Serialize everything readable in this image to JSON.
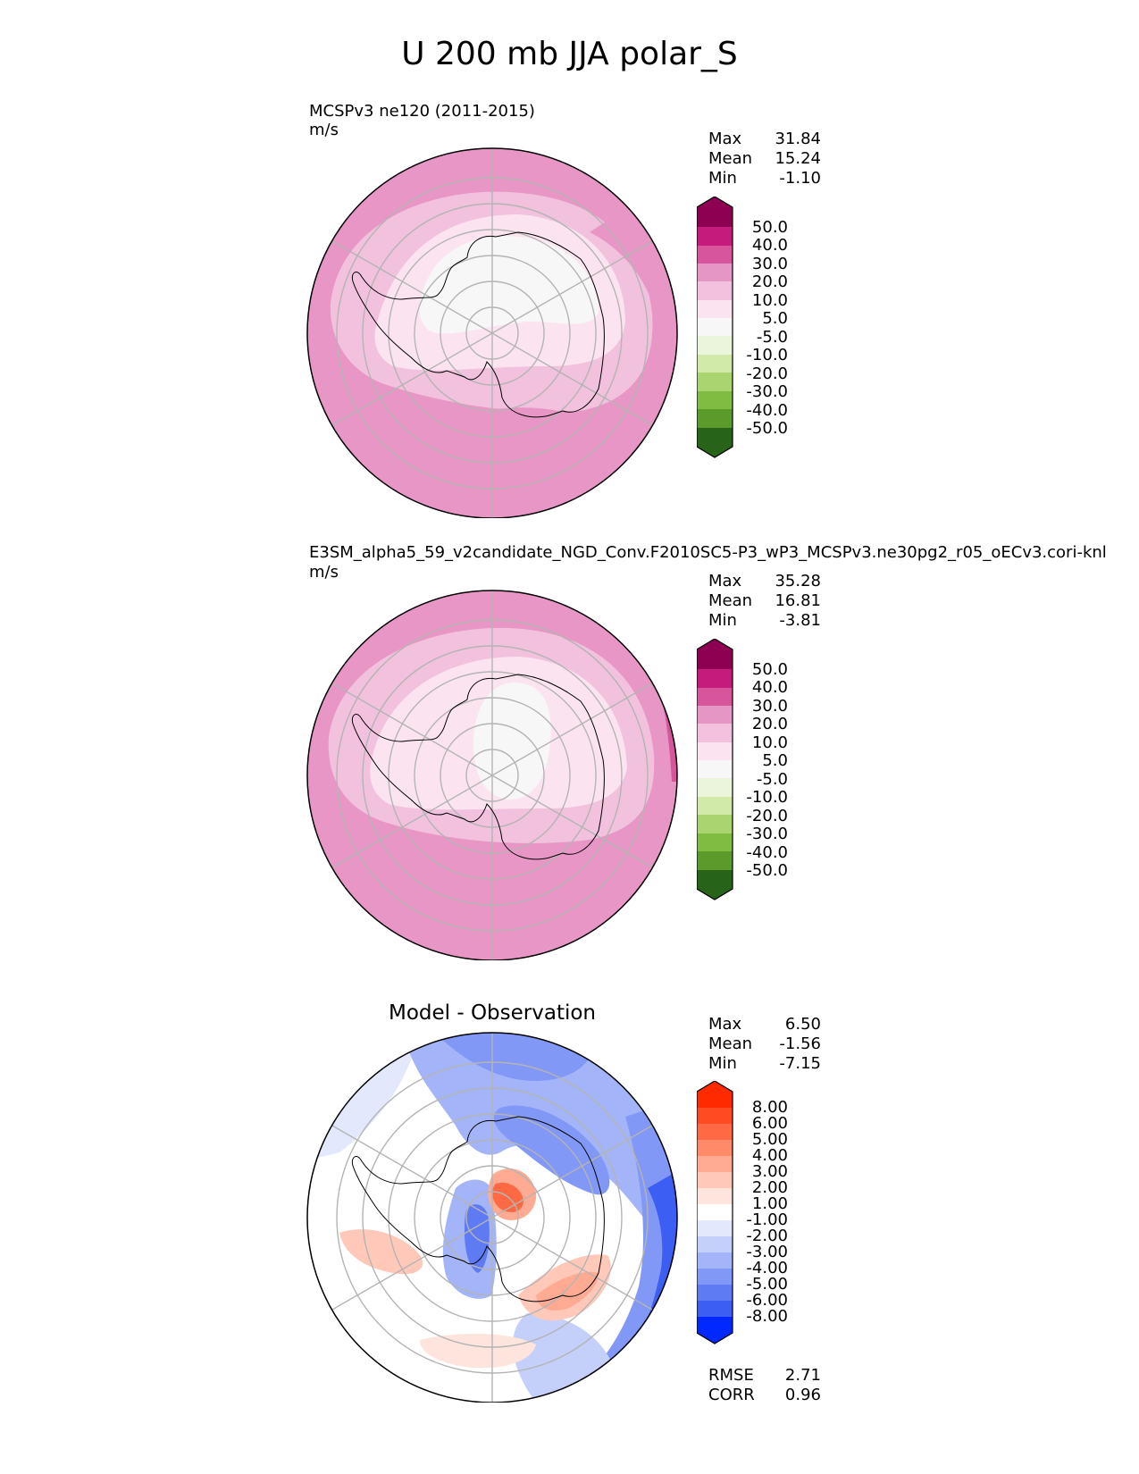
{
  "figure": {
    "title": "U 200 mb JJA polar_S"
  },
  "panels": [
    {
      "label": "MCSPv3 ne120 (2011-2015)",
      "units": "m/s",
      "stats": {
        "max_label": "Max",
        "max": "31.84",
        "mean_label": "Mean",
        "mean": "15.24",
        "min_label": "Min",
        "min": "-1.10"
      },
      "colorbar_labels": [
        "50.0",
        "40.0",
        "30.0",
        "20.0",
        "10.0",
        "5.0",
        "-5.0",
        "-10.0",
        "-20.0",
        "-30.0",
        "-40.0",
        "-50.0"
      ]
    },
    {
      "label": "E3SM_alpha5_59_v2candidate_NGD_Conv.F2010SC5-P3_wP3_MCSPv3.ne30pg2_r05_oECv3.cori-knl",
      "units": "m/s",
      "stats": {
        "max_label": "Max",
        "max": "35.28",
        "mean_label": "Mean",
        "mean": "16.81",
        "min_label": "Min",
        "min": "-3.81"
      },
      "colorbar_labels": [
        "50.0",
        "40.0",
        "30.0",
        "20.0",
        "10.0",
        "5.0",
        "-5.0",
        "-10.0",
        "-20.0",
        "-30.0",
        "-40.0",
        "-50.0"
      ]
    },
    {
      "title": "Model - Observation",
      "stats": {
        "max_label": "Max",
        "max": "6.50",
        "mean_label": "Mean",
        "mean": "-1.56",
        "min_label": "Min",
        "min": "-7.15"
      },
      "colorbar_labels": [
        "8.00",
        "6.00",
        "5.00",
        "4.00",
        "3.00",
        "2.00",
        "1.00",
        "-1.00",
        "-2.00",
        "-3.00",
        "-4.00",
        "-5.00",
        "-6.00",
        "-8.00"
      ],
      "metrics": {
        "rmse_label": "RMSE",
        "rmse": "2.71",
        "corr_label": "CORR",
        "corr": "0.96"
      }
    }
  ],
  "colors": {
    "seq": [
      "#8e0152",
      "#c51b7d",
      "#de77ae",
      "#f1b6da",
      "#fde0ef",
      "#f7f7f7",
      "#e6f5d0",
      "#b8e186",
      "#7fbc41",
      "#4d9221",
      "#276419"
    ],
    "seq_colorbar": [
      "#8e0152",
      "#c51b7d",
      "#d6559b",
      "#e696c4",
      "#f1c1dd",
      "#fbe4ef",
      "#f7f7f7",
      "#ebf5dc",
      "#d1eaaa",
      "#a9d46f",
      "#7fbc41",
      "#5b9b2b",
      "#3f7d22",
      "#276419"
    ],
    "diff_colorbar": [
      "#ff2a00",
      "#ff4a22",
      "#ff6a44",
      "#ff8a6a",
      "#ffaa92",
      "#ffc8b8",
      "#fde4dc",
      "#ffffff",
      "#e3e8fd",
      "#c4cffa",
      "#a3b5f8",
      "#8198f6",
      "#5f7bf4",
      "#3d5ef2",
      "#1c40f5",
      "#0028ff"
    ],
    "grid": "#b4b4b4",
    "coast": "#000000"
  }
}
